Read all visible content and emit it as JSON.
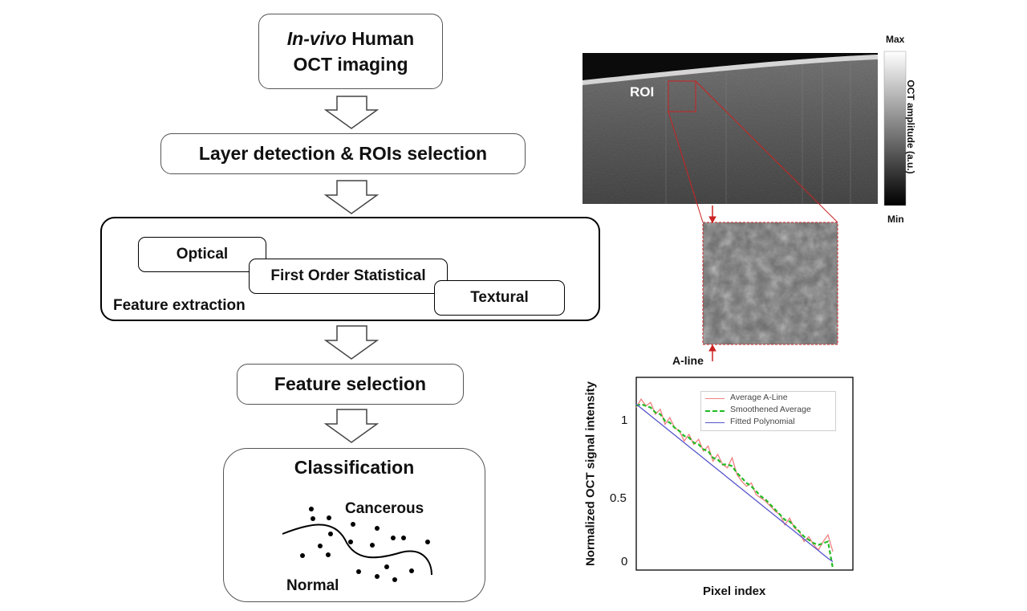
{
  "flowchart": {
    "step1": {
      "prefix": "In-vivo",
      "rest": " Human",
      "line2": "OCT imaging"
    },
    "step2": "Layer detection & ROIs selection",
    "step3": {
      "title": "Feature extraction",
      "items": [
        "Optical",
        "First Order Statistical",
        "Textural"
      ]
    },
    "step4": "Feature selection",
    "step5": {
      "title": "Classification",
      "class_upper": "Cancerous",
      "class_lower": "Normal"
    }
  },
  "oct_image": {
    "roi_label": "ROI",
    "colorbar": {
      "max": "Max",
      "min": "Min",
      "title": "OCT amplitude (a.u.)"
    },
    "aline_label": "A-line"
  },
  "chart_data": {
    "type": "line",
    "xlabel": "Pixel index",
    "ylabel": "Normalized OCT signal intensity",
    "ylim": [
      -0.05,
      1.1
    ],
    "y_ticks": [
      "1",
      "0.5",
      "0"
    ],
    "grid": false,
    "legend_position": "top-right",
    "series": [
      {
        "name": "Average A-Line",
        "color": "#f08080",
        "style": "solid",
        "values": [
          0.92,
          0.97,
          0.93,
          0.95,
          0.88,
          0.91,
          0.82,
          0.86,
          0.8,
          0.78,
          0.72,
          0.76,
          0.7,
          0.73,
          0.66,
          0.69,
          0.6,
          0.64,
          0.58,
          0.56,
          0.62,
          0.52,
          0.48,
          0.45,
          0.47,
          0.4,
          0.38,
          0.36,
          0.33,
          0.3,
          0.28,
          0.22,
          0.26,
          0.2,
          0.18,
          0.12,
          0.15,
          0.1,
          0.07,
          0.12,
          0.16,
          0.06
        ]
      },
      {
        "name": "Smoothened Average",
        "color": "#22bb22",
        "style": "dashed",
        "values": [
          0.93,
          0.94,
          0.93,
          0.92,
          0.89,
          0.88,
          0.84,
          0.83,
          0.8,
          0.78,
          0.75,
          0.74,
          0.71,
          0.7,
          0.67,
          0.66,
          0.62,
          0.61,
          0.58,
          0.58,
          0.57,
          0.53,
          0.5,
          0.47,
          0.45,
          0.42,
          0.39,
          0.37,
          0.34,
          0.31,
          0.28,
          0.25,
          0.24,
          0.21,
          0.18,
          0.15,
          0.13,
          0.11,
          0.1,
          0.11,
          0.12,
          -0.04
        ]
      },
      {
        "name": "Fitted Polynomial",
        "color": "#5555cc",
        "style": "solid",
        "values": [
          0.94,
          0.917,
          0.894,
          0.871,
          0.848,
          0.825,
          0.802,
          0.779,
          0.756,
          0.733,
          0.71,
          0.687,
          0.664,
          0.641,
          0.618,
          0.595,
          0.572,
          0.549,
          0.526,
          0.503,
          0.48,
          0.457,
          0.434,
          0.411,
          0.388,
          0.365,
          0.342,
          0.319,
          0.296,
          0.273,
          0.25,
          0.227,
          0.204,
          0.181,
          0.158,
          0.135,
          0.112,
          0.089,
          0.066,
          0.043,
          0.02,
          0.0
        ]
      }
    ]
  }
}
